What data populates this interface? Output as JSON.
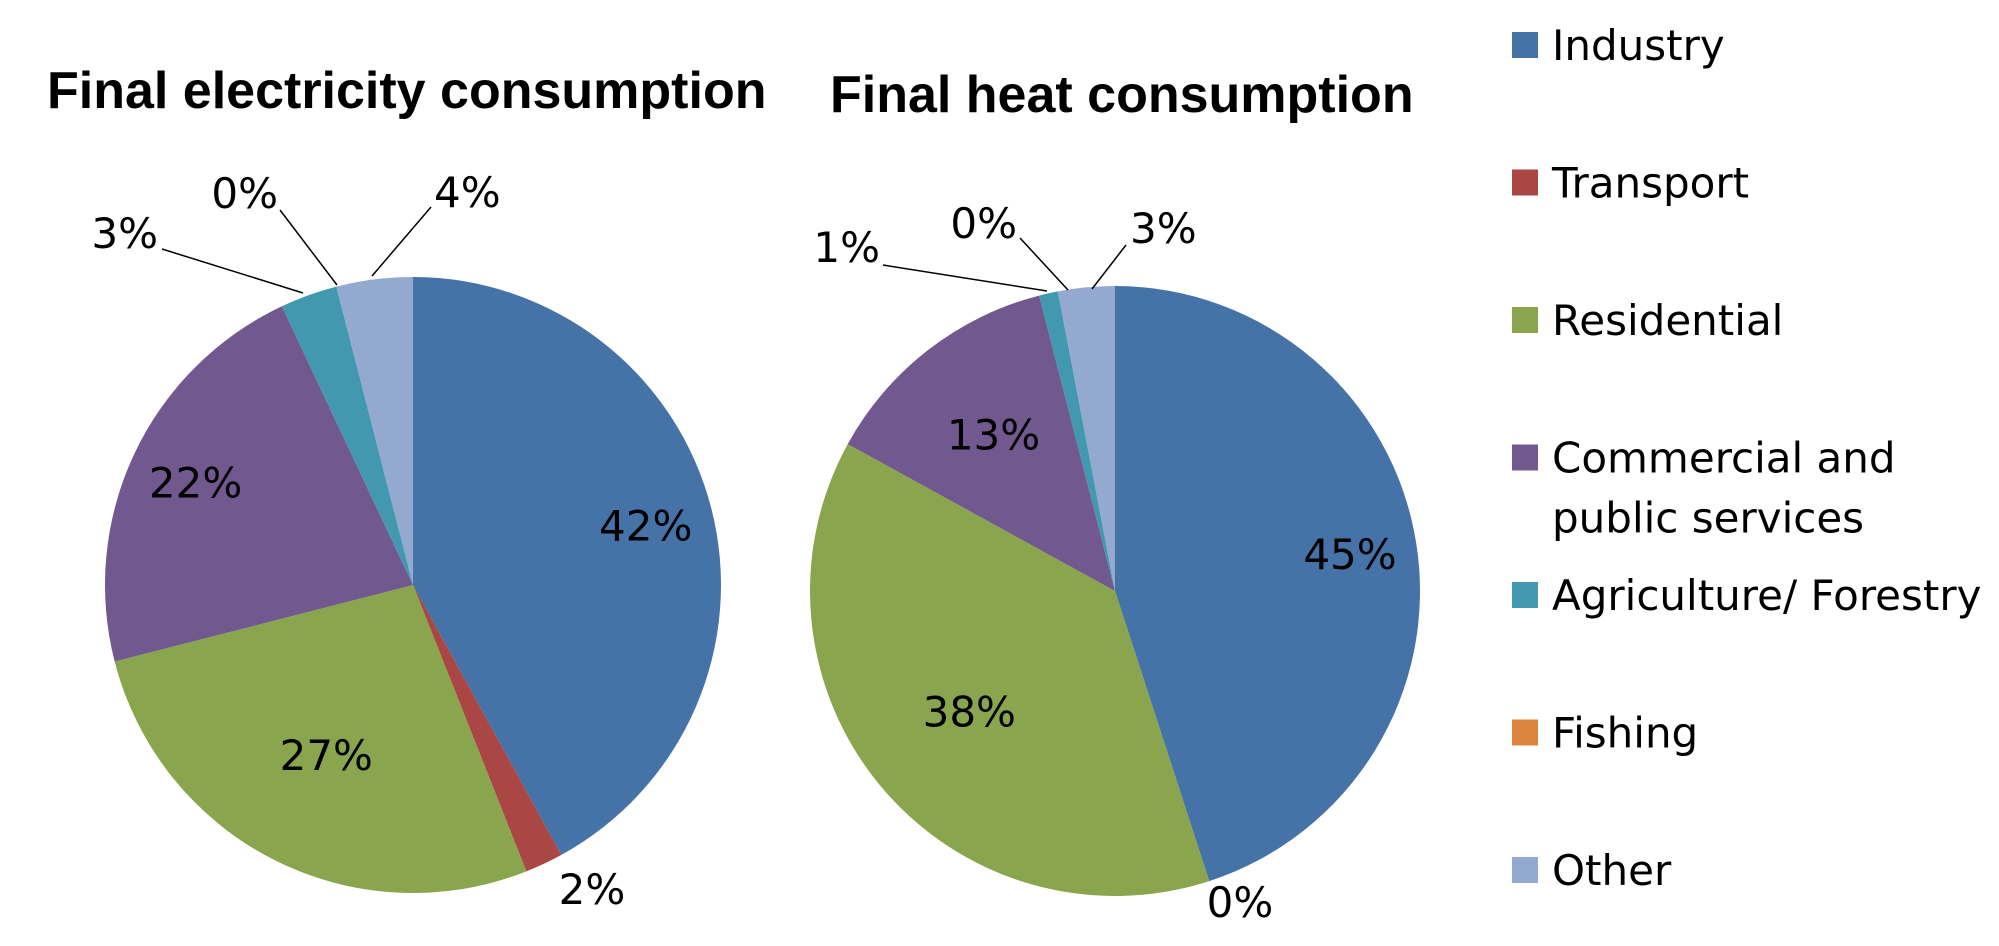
{
  "chart_data": [
    {
      "type": "pie",
      "title": "Final electricity consumption",
      "categories": [
        "Industry",
        "Transport",
        "Residential",
        "Commercial and public services",
        "Agriculture/ Forestry",
        "Fishing",
        "Other"
      ],
      "values": [
        42,
        2,
        27,
        22,
        3,
        0,
        4
      ],
      "labels": [
        "42%",
        "2%",
        "27%",
        "22%",
        "3%",
        "0%",
        "4%"
      ]
    },
    {
      "type": "pie",
      "title": "Final heat consumption",
      "categories": [
        "Industry",
        "Transport",
        "Residential",
        "Commercial and public services",
        "Agriculture/ Forestry",
        "Fishing",
        "Other"
      ],
      "values": [
        45,
        0,
        38,
        13,
        1,
        0,
        3
      ],
      "labels": [
        "45%",
        "0%",
        "38%",
        "13%",
        "1%",
        "0%",
        "3%"
      ]
    }
  ],
  "legend": {
    "placement": "right",
    "items": [
      {
        "name": "Industry",
        "color": "#4572A7"
      },
      {
        "name": "Transport",
        "color": "#AA4643"
      },
      {
        "name": "Residential",
        "color": "#89A54E"
      },
      {
        "name": "Commercial and public services",
        "lines": [
          "Commercial and",
          "public services"
        ],
        "color": "#71588F"
      },
      {
        "name": "Agriculture/ Forestry",
        "color": "#4198AF"
      },
      {
        "name": "Fishing",
        "color": "#DB843D"
      },
      {
        "name": "Other",
        "color": "#93A9CF"
      }
    ]
  }
}
